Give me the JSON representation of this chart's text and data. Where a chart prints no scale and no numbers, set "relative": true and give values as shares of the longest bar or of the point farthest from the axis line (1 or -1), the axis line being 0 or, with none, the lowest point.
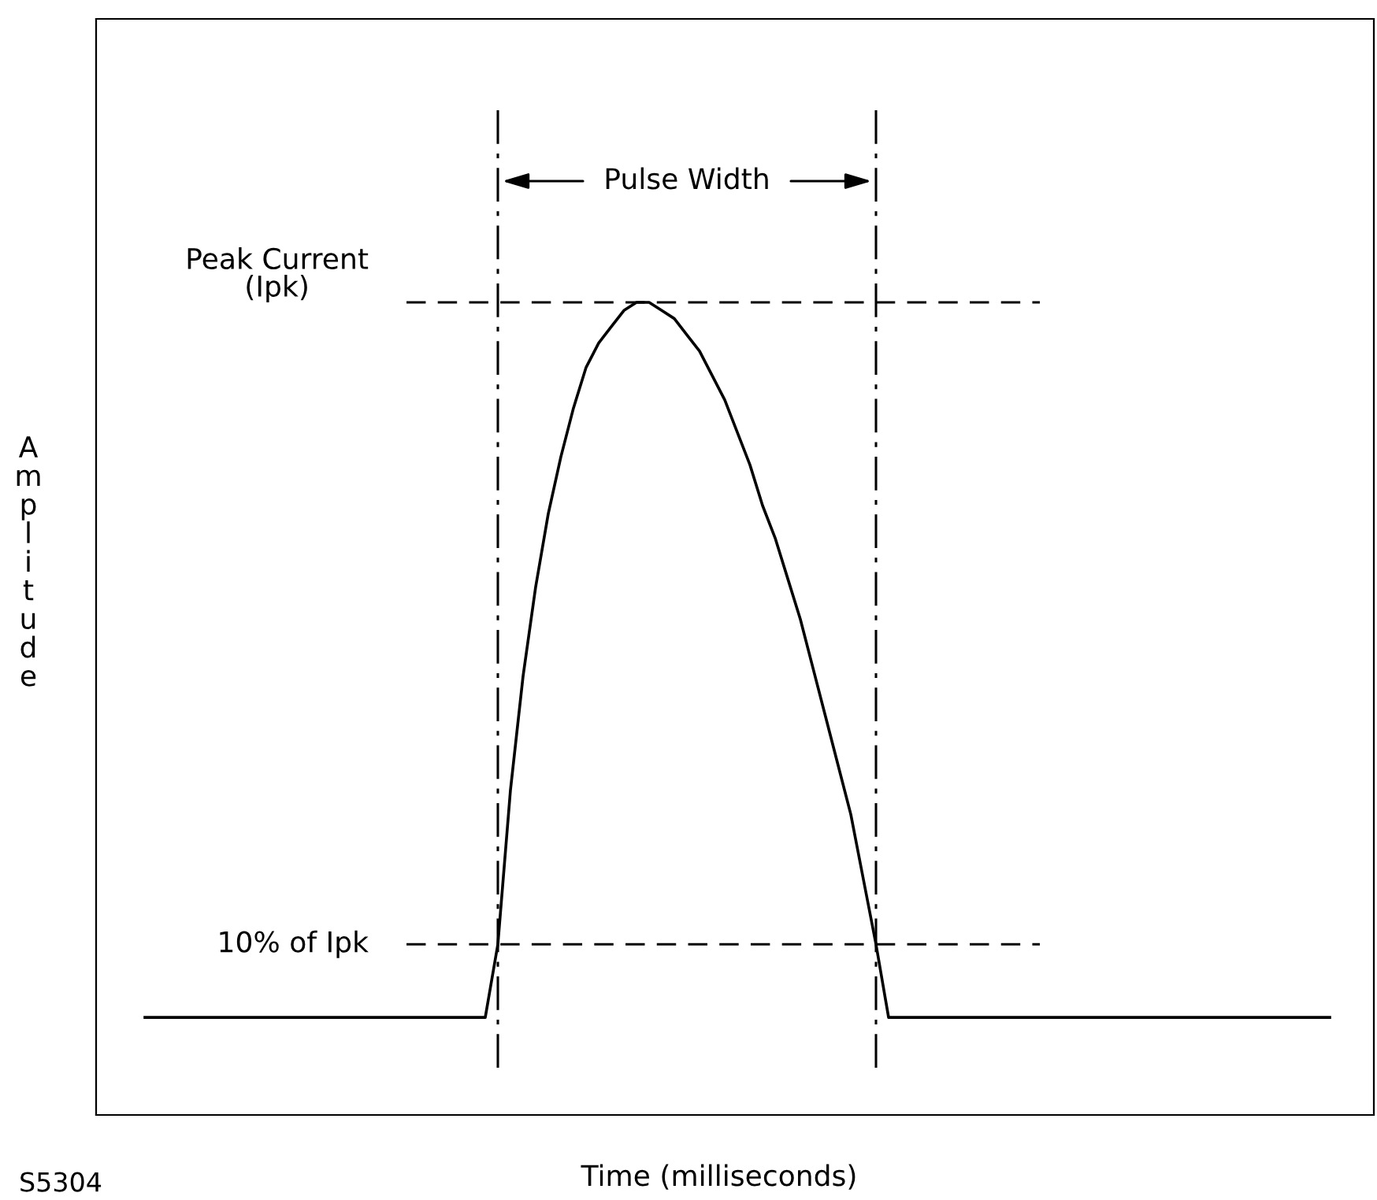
{
  "chart_data": {
    "type": "line",
    "relative": true,
    "xlabel": "Time (milliseconds)",
    "ylabel": "Amplitude",
    "marker": "none",
    "line_style": "solid",
    "categories": [
      null,
      null,
      null,
      null,
      null,
      null,
      null,
      null,
      null,
      null,
      null,
      null,
      null,
      null,
      null,
      null,
      null,
      null,
      null,
      null,
      null,
      null,
      null,
      null,
      null,
      null,
      null,
      null,
      null,
      null,
      null,
      null,
      null,
      null,
      null,
      null,
      null,
      null,
      null,
      null,
      null,
      null,
      null,
      null,
      null,
      null,
      null,
      null,
      null,
      null,
      null,
      null,
      null,
      null,
      null,
      null,
      null,
      null,
      null,
      null,
      null,
      null,
      null,
      null,
      null,
      null,
      null,
      null,
      null,
      null,
      null,
      null,
      null,
      null,
      null,
      null,
      null,
      null,
      null,
      null,
      null,
      null,
      null,
      null,
      null,
      null,
      null,
      null,
      null,
      null,
      null,
      null,
      null,
      null,
      null
    ],
    "series": [
      {
        "color": "#000000",
        "values": [
          0.12,
          0.12,
          0.12,
          0.12,
          0.12,
          0.12,
          0.12,
          0.12,
          0.12,
          0.12,
          0.12,
          0.12,
          0.12,
          0.12,
          0.12,
          0.12,
          0.12,
          0.12,
          0.12,
          0.12,
          0.12,
          0.12,
          0.12,
          0.12,
          0.12,
          0.12,
          0.12,
          0.12,
          0.21,
          0.4,
          0.54,
          0.65,
          0.74,
          0.81,
          0.87,
          0.92,
          0.95,
          0.97,
          0.99,
          1.0,
          1.0,
          0.99,
          0.98,
          0.96,
          0.94,
          0.91,
          0.88,
          0.84,
          0.8,
          0.75,
          0.71,
          0.66,
          0.61,
          0.55,
          0.49,
          0.43,
          0.37,
          0.29,
          0.21,
          0.12,
          0.12,
          0.12,
          0.12,
          0.12,
          0.12,
          0.12,
          0.12,
          0.12,
          0.12,
          0.12,
          0.12,
          0.12,
          0.12,
          0.12,
          0.12,
          0.12,
          0.12,
          0.12,
          0.12,
          0.12,
          0.12,
          0.12,
          0.12,
          0.12,
          0.12,
          0.12,
          0.12,
          0.12,
          0.12,
          0.12,
          0.12,
          0.12,
          0.12,
          0.12,
          0.12
        ]
      }
    ],
    "ref_lines": [
      {
        "axis": "y",
        "value": 1.0,
        "label": "Peak Current\n(Ipk)",
        "color": "#000000",
        "line_style": "dashed"
      },
      {
        "axis": "y",
        "value": 0.21,
        "label": "10% of Ipk",
        "color": "#000000",
        "line_style": "dashed"
      }
    ],
    "annotations": [
      "Pulse Width",
      "S5304"
    ]
  }
}
